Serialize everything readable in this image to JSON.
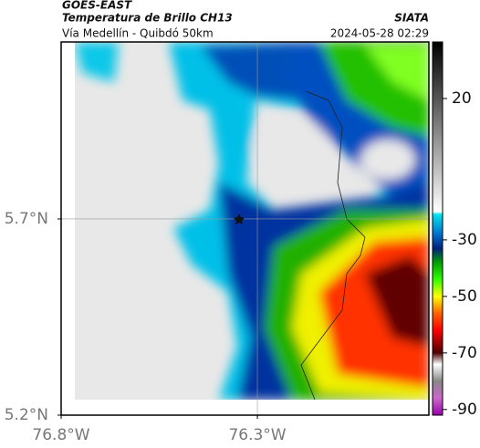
{
  "header": {
    "satellite": "GOES-EAST",
    "product": "Temperatura de Brillo CH13",
    "source": "SIATA",
    "route": "Vía Medellín - Quibdó 50km",
    "datetime": "2024-05-28 02:29"
  },
  "map": {
    "xlim": [
      -76.8,
      -75.863
    ],
    "ylim": [
      5.2,
      6.151
    ],
    "xticks": [
      {
        "value": -76.8,
        "label": "76.8°W"
      },
      {
        "value": -76.3,
        "label": "76.3°W"
      }
    ],
    "yticks": [
      {
        "value": 5.2,
        "label": "5.2°N"
      },
      {
        "value": 5.7,
        "label": "5.7°N"
      }
    ],
    "grid": true
  },
  "colorbar": {
    "lim": [
      -92,
      40
    ],
    "ticks": [
      20,
      -30,
      -50,
      -70,
      -90
    ],
    "colormap": [
      [
        40,
        "#000000"
      ],
      [
        20,
        "#555555"
      ],
      [
        0,
        "#aaaaaa"
      ],
      [
        -20,
        "#ffffff"
      ],
      [
        -21,
        "#00e5ee"
      ],
      [
        -28,
        "#0070d0"
      ],
      [
        -33,
        "#002080"
      ],
      [
        -38,
        "#00a000"
      ],
      [
        -44,
        "#30ff00"
      ],
      [
        -50,
        "#ffff00"
      ],
      [
        -56,
        "#ff6000"
      ],
      [
        -62,
        "#ff0000"
      ],
      [
        -70,
        "#500000"
      ],
      [
        -74,
        "#ffffff"
      ],
      [
        -80,
        "#888888"
      ],
      [
        -86,
        "#cc66cc"
      ],
      [
        -92,
        "#9900aa"
      ]
    ]
  }
}
